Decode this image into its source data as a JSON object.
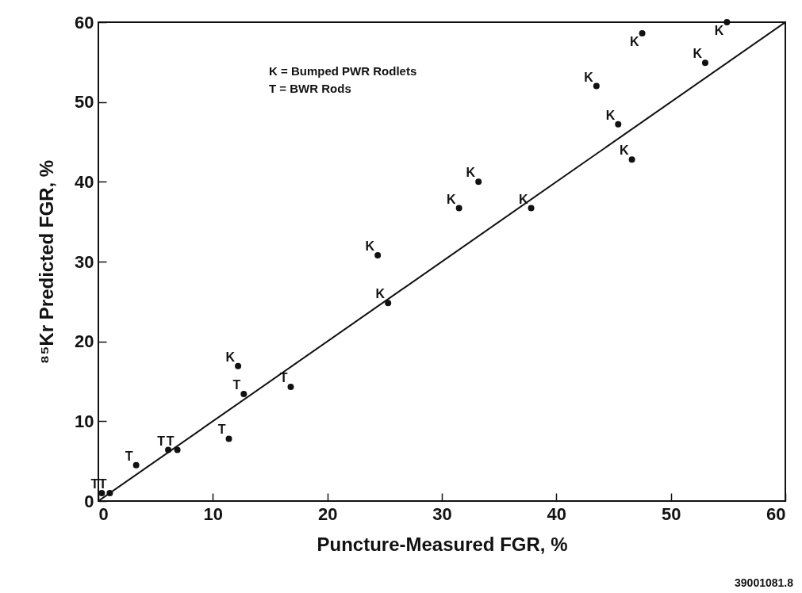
{
  "chart_data": {
    "type": "scatter",
    "xlabel": "Puncture-Measured FGR, %",
    "ylabel": "⁸⁵Kr  Predicted FGR, %",
    "xlim": [
      0,
      60
    ],
    "ylim": [
      0,
      60
    ],
    "xticks": [
      0,
      10,
      20,
      30,
      40,
      50,
      60
    ],
    "yticks": [
      0,
      10,
      20,
      30,
      40,
      50,
      60
    ],
    "grid": false,
    "annotations": [
      "K = Bumped PWR Rodlets",
      "T = BWR Rods",
      "39001081.8"
    ],
    "series": [
      {
        "name": "K",
        "color": "#111111",
        "x": [
          12.2,
          24.4,
          25.3,
          31.5,
          33.2,
          37.8,
          43.5,
          45.4,
          46.6,
          47.5,
          53.0,
          54.9
        ],
        "values": [
          16.9,
          30.8,
          24.8,
          36.7,
          40.0,
          36.7,
          52.0,
          47.2,
          42.8,
          58.6,
          54.9,
          60.0
        ]
      },
      {
        "name": "T",
        "color": "#111111",
        "x": [
          0.3,
          1.0,
          3.3,
          6.1,
          6.9,
          11.4,
          12.7,
          16.8
        ],
        "values": [
          1.0,
          1.0,
          4.5,
          6.4,
          6.4,
          7.8,
          13.4,
          14.3
        ]
      },
      {
        "type": "line",
        "color": "#111111",
        "x": [
          0,
          60
        ],
        "values": [
          0,
          60
        ]
      }
    ]
  }
}
